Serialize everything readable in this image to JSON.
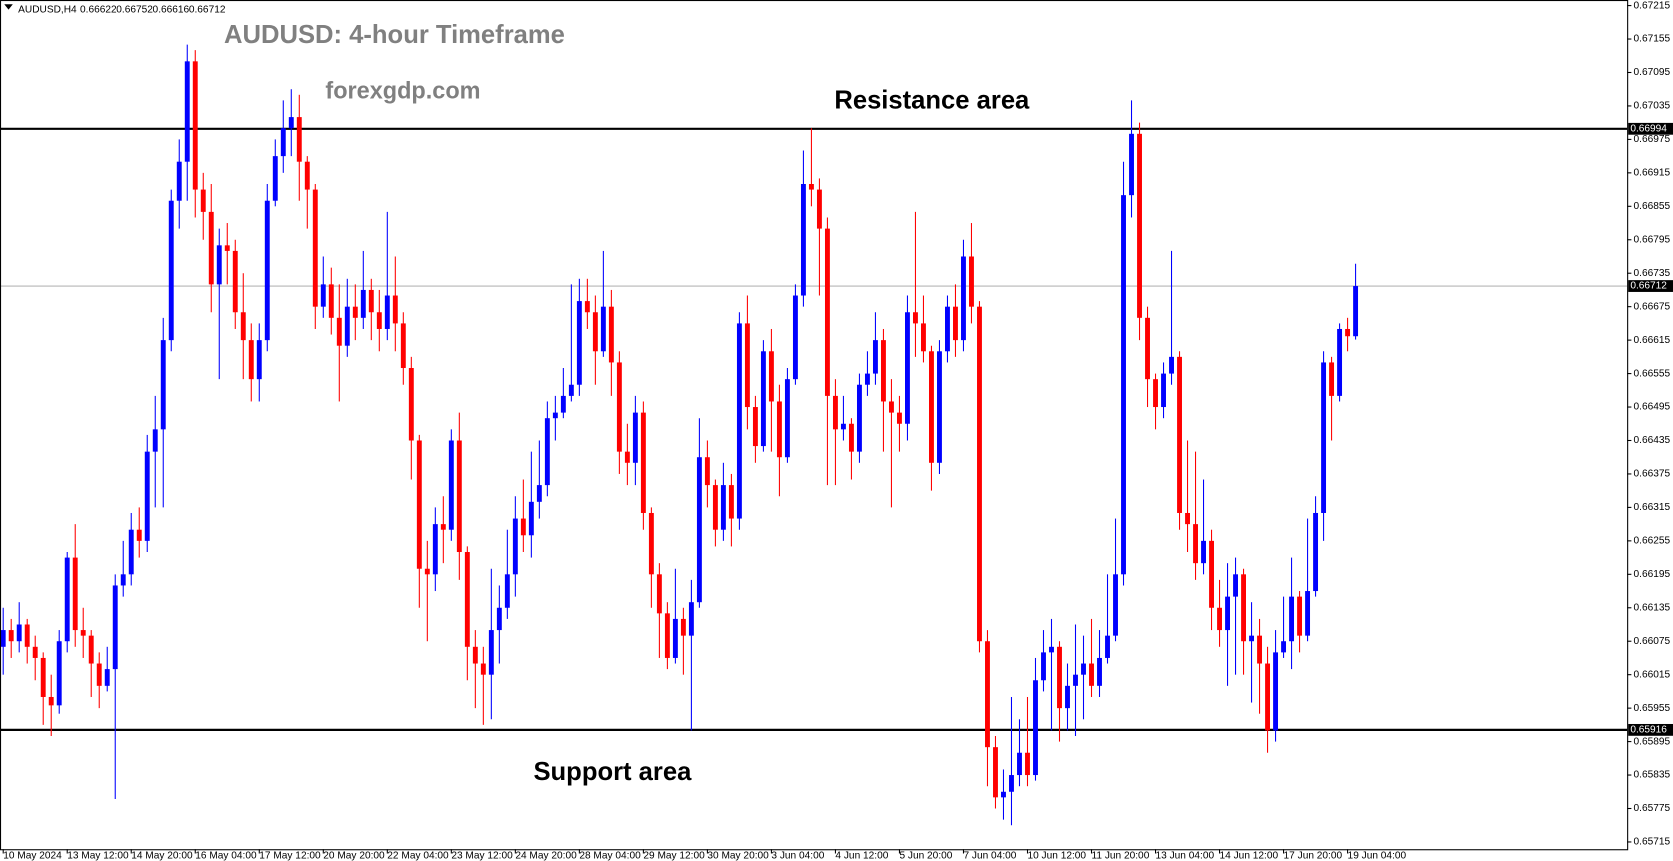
{
  "chart_data": {
    "type": "candlestick",
    "symbol": "AUDUSD,H4",
    "title": "AUDUSD: 4-hour Timeframe",
    "subtitle": "forexgdp.com",
    "up_color": "#0000ff",
    "down_color": "#ff0000",
    "ylim": [
      0.65702,
      0.67225
    ],
    "yticks": [
      0.67215,
      0.67155,
      0.67095,
      0.67035,
      0.66975,
      0.66915,
      0.66855,
      0.66795,
      0.66735,
      0.66675,
      0.66615,
      0.66555,
      0.66495,
      0.66435,
      0.66375,
      0.66315,
      0.66255,
      0.66195,
      0.66135,
      0.66075,
      0.66015,
      0.65955,
      0.65895,
      0.65835,
      0.65775,
      0.65715
    ],
    "resistance": {
      "value": 0.66994,
      "text": "Resistance area"
    },
    "support": {
      "value": 0.65916,
      "text": "Support area"
    },
    "current_price": 0.66712,
    "categories": [
      "10 May 2024",
      null,
      null,
      null,
      null,
      null,
      null,
      null,
      "13 May 12:00",
      null,
      null,
      null,
      null,
      null,
      null,
      null,
      "14 May 20:00",
      null,
      null,
      null,
      null,
      null,
      null,
      null,
      "16 May 04:00",
      null,
      null,
      null,
      null,
      null,
      null,
      null,
      "17 May 12:00",
      null,
      null,
      null,
      null,
      null,
      null,
      null,
      "20 May 20:00",
      null,
      null,
      null,
      null,
      null,
      null,
      null,
      "22 May 04:00",
      null,
      null,
      null,
      null,
      null,
      null,
      null,
      "23 May 12:00",
      null,
      null,
      null,
      null,
      null,
      null,
      null,
      "24 May 20:00",
      null,
      null,
      null,
      null,
      null,
      null,
      null,
      "28 May 04:00",
      null,
      null,
      null,
      null,
      null,
      null,
      null,
      "29 May 12:00",
      null,
      null,
      null,
      null,
      null,
      null,
      null,
      "30 May 20:00",
      null,
      null,
      null,
      null,
      null,
      null,
      null,
      "3 Jun 04:00",
      null,
      null,
      null,
      null,
      null,
      null,
      null,
      "4 Jun 12:00",
      null,
      null,
      null,
      null,
      null,
      null,
      null,
      "5 Jun 20:00",
      null,
      null,
      null,
      null,
      null,
      null,
      null,
      "7 Jun 04:00",
      null,
      null,
      null,
      null,
      null,
      null,
      null,
      "10 Jun 12:00",
      null,
      null,
      null,
      null,
      null,
      null,
      null,
      "11 Jun 20:00",
      null,
      null,
      null,
      null,
      null,
      null,
      null,
      "13 Jun 04:00",
      null,
      null,
      null,
      null,
      null,
      null,
      null,
      "14 Jun 12:00",
      null,
      null,
      null,
      null,
      null,
      null,
      null,
      "17 Jun 20:00",
      null,
      null,
      null,
      null,
      null,
      null,
      null,
      "19 Jun 04:00",
      null
    ],
    "open": [
      0.66065,
      0.66095,
      0.66075,
      0.66105,
      0.66065,
      0.66045,
      0.65975,
      0.6596,
      0.66075,
      0.66225,
      0.66095,
      0.66085,
      0.66035,
      0.65995,
      0.66025,
      0.66175,
      0.66195,
      0.66275,
      0.66255,
      0.66415,
      0.66455,
      0.66615,
      0.66865,
      0.66935,
      0.67115,
      0.66885,
      0.66845,
      0.66715,
      0.66785,
      0.66775,
      0.66665,
      0.66615,
      0.66545,
      0.66615,
      0.66865,
      0.66945,
      0.66995,
      0.67015,
      0.66935,
      0.66885,
      0.66675,
      0.66715,
      0.66655,
      0.66605,
      0.66675,
      0.66655,
      0.66705,
      0.66665,
      0.66635,
      0.66695,
      0.66645,
      0.66565,
      0.66435,
      0.66205,
      0.66195,
      0.66285,
      0.66275,
      0.66435,
      0.66235,
      0.66065,
      0.66035,
      0.66015,
      0.66095,
      0.66135,
      0.66195,
      0.66295,
      0.66265,
      0.66325,
      0.66355,
      0.66475,
      0.66485,
      0.66515,
      0.66535,
      0.66685,
      0.66665,
      0.66595,
      0.66675,
      0.66575,
      0.66415,
      0.66395,
      0.66485,
      0.66305,
      0.66195,
      0.66125,
      0.66045,
      0.66115,
      0.66085,
      0.66145,
      0.66405,
      0.66355,
      0.66275,
      0.66355,
      0.66295,
      0.66645,
      0.66495,
      0.66425,
      0.66595,
      0.66505,
      0.66405,
      0.66545,
      0.66695,
      0.66895,
      0.66885,
      0.66815,
      0.66515,
      0.66455,
      0.66465,
      0.66415,
      0.66535,
      0.66555,
      0.66615,
      0.66505,
      0.66485,
      0.66465,
      0.66665,
      0.66645,
      0.66595,
      0.66395,
      0.66595,
      0.66675,
      0.66615,
      0.66765,
      0.66675,
      0.66075,
      0.65885,
      0.65795,
      0.65805,
      0.65835,
      0.65875,
      0.65835,
      0.66005,
      0.66055,
      0.66065,
      0.65955,
      0.65995,
      0.66015,
      0.66035,
      0.65995,
      0.66045,
      0.66085,
      0.66195,
      0.66875,
      0.66985,
      0.66655,
      0.66545,
      0.66495,
      0.66555,
      0.66585,
      0.66305,
      0.66285,
      0.66215,
      0.66255,
      0.66135,
      0.66095,
      0.66155,
      0.66195,
      0.66075,
      0.66085,
      0.66035,
      0.65915,
      0.66055,
      0.66075,
      0.66155,
      0.66085,
      0.66165,
      0.66305,
      0.66575,
      0.66515,
      0.66635,
      0.66622
    ],
    "high": [
      0.66135,
      0.66115,
      0.66145,
      0.66115,
      0.66085,
      0.66055,
      0.66015,
      0.66095,
      0.66235,
      0.66285,
      0.66135,
      0.66095,
      0.66055,
      0.66065,
      0.66195,
      0.66255,
      0.66305,
      0.66315,
      0.66445,
      0.66515,
      0.66655,
      0.66885,
      0.66975,
      0.67145,
      0.67135,
      0.66915,
      0.66895,
      0.66815,
      0.66825,
      0.66795,
      0.66735,
      0.66645,
      0.66645,
      0.66895,
      0.66975,
      0.67045,
      0.67065,
      0.67055,
      0.66945,
      0.66895,
      0.66765,
      0.66745,
      0.66715,
      0.66725,
      0.66715,
      0.66775,
      0.66725,
      0.66705,
      0.66845,
      0.66765,
      0.66665,
      0.66585,
      0.66445,
      0.66255,
      0.66315,
      0.66335,
      0.66455,
      0.66485,
      0.66245,
      0.66095,
      0.66065,
      0.66205,
      0.66175,
      0.66275,
      0.66335,
      0.66365,
      0.66415,
      0.66435,
      0.66505,
      0.66515,
      0.66565,
      0.66715,
      0.66725,
      0.66725,
      0.66695,
      0.66775,
      0.66705,
      0.66595,
      0.66465,
      0.66515,
      0.66505,
      0.66315,
      0.66215,
      0.66145,
      0.66205,
      0.66135,
      0.66185,
      0.66475,
      0.66435,
      0.66365,
      0.66395,
      0.66375,
      0.66665,
      0.66695,
      0.66515,
      0.66615,
      0.66635,
      0.66535,
      0.66565,
      0.66715,
      0.66955,
      0.66995,
      0.66905,
      0.66835,
      0.66545,
      0.66515,
      0.66475,
      0.66555,
      0.66595,
      0.66665,
      0.66635,
      0.66545,
      0.66515,
      0.66695,
      0.66845,
      0.66695,
      0.66605,
      0.66615,
      0.66695,
      0.66715,
      0.66795,
      0.66825,
      0.66685,
      0.66095,
      0.65905,
      0.65845,
      0.65975,
      0.65935,
      0.65975,
      0.66045,
      0.66095,
      0.66115,
      0.66075,
      0.66035,
      0.66105,
      0.66085,
      0.66115,
      0.66095,
      0.66195,
      0.66295,
      0.66935,
      0.67045,
      0.67005,
      0.66675,
      0.66555,
      0.66575,
      0.66775,
      0.66595,
      0.66435,
      0.66415,
      0.66365,
      0.66275,
      0.66185,
      0.66215,
      0.66225,
      0.66205,
      0.66145,
      0.66115,
      0.66065,
      0.66095,
      0.66155,
      0.66225,
      0.66165,
      0.66295,
      0.66335,
      0.66595,
      0.66585,
      0.66645,
      0.66655,
      0.66752
    ],
    "low": [
      0.66015,
      0.66045,
      0.66055,
      0.66035,
      0.66005,
      0.65925,
      0.65905,
      0.65945,
      0.66055,
      0.66065,
      0.66045,
      0.65975,
      0.65955,
      0.65985,
      0.65792,
      0.66155,
      0.66175,
      0.66225,
      0.66235,
      0.66315,
      0.66315,
      0.66595,
      0.66815,
      0.66865,
      0.66835,
      0.66795,
      0.66665,
      0.66545,
      0.66715,
      0.66635,
      0.66545,
      0.66505,
      0.66505,
      0.66595,
      0.66855,
      0.66915,
      0.66945,
      0.66865,
      0.66815,
      0.66635,
      0.66655,
      0.66625,
      0.66505,
      0.66585,
      0.66615,
      0.66635,
      0.66615,
      0.66595,
      0.66615,
      0.66595,
      0.66535,
      0.66365,
      0.66135,
      0.66075,
      0.66165,
      0.66215,
      0.66255,
      0.66185,
      0.66005,
      0.65955,
      0.65925,
      0.65935,
      0.66035,
      0.66115,
      0.66155,
      0.66235,
      0.66225,
      0.66295,
      0.66335,
      0.66435,
      0.66475,
      0.66505,
      0.66515,
      0.66635,
      0.66535,
      0.66585,
      0.66515,
      0.66375,
      0.66355,
      0.66355,
      0.66275,
      0.66135,
      0.66045,
      0.66025,
      0.66035,
      0.66015,
      0.65915,
      0.66135,
      0.66315,
      0.66245,
      0.66255,
      0.66245,
      0.66275,
      0.66455,
      0.66395,
      0.66415,
      0.66415,
      0.66335,
      0.66395,
      0.66535,
      0.66675,
      0.66855,
      0.66695,
      0.66355,
      0.66355,
      0.66435,
      0.66365,
      0.66395,
      0.66515,
      0.66535,
      0.66415,
      0.66315,
      0.66415,
      0.66435,
      0.66585,
      0.66575,
      0.66345,
      0.66375,
      0.66575,
      0.66585,
      0.66595,
      0.66645,
      0.66055,
      0.65815,
      0.65775,
      0.65755,
      0.65745,
      0.65815,
      0.65815,
      0.65825,
      0.65985,
      0.65915,
      0.65895,
      0.65915,
      0.65905,
      0.65935,
      0.65975,
      0.65975,
      0.66035,
      0.66075,
      0.66175,
      0.66835,
      0.66615,
      0.66495,
      0.66455,
      0.66475,
      0.66535,
      0.66275,
      0.66235,
      0.66185,
      0.66195,
      0.66095,
      0.66065,
      0.65995,
      0.66015,
      0.66015,
      0.65965,
      0.65945,
      0.65875,
      0.65895,
      0.66045,
      0.66025,
      0.66055,
      0.66075,
      0.66155,
      0.66255,
      0.66435,
      0.66505,
      0.66595,
      0.66616
    ],
    "close": [
      0.66095,
      0.66075,
      0.66105,
      0.66065,
      0.66045,
      0.65975,
      0.6596,
      0.66075,
      0.66225,
      0.66095,
      0.66085,
      0.66035,
      0.65995,
      0.66025,
      0.66175,
      0.66195,
      0.66275,
      0.66255,
      0.66415,
      0.66455,
      0.66615,
      0.66865,
      0.66935,
      0.67115,
      0.66885,
      0.66845,
      0.66715,
      0.66785,
      0.66775,
      0.66665,
      0.66615,
      0.66545,
      0.66615,
      0.66865,
      0.66945,
      0.66995,
      0.67015,
      0.66935,
      0.66885,
      0.66675,
      0.66715,
      0.66655,
      0.66605,
      0.66675,
      0.66655,
      0.66705,
      0.66665,
      0.66635,
      0.66695,
      0.66645,
      0.66565,
      0.66435,
      0.66205,
      0.66195,
      0.66285,
      0.66275,
      0.66435,
      0.66235,
      0.66065,
      0.66035,
      0.66015,
      0.66095,
      0.66135,
      0.66195,
      0.66295,
      0.66265,
      0.66325,
      0.66355,
      0.66475,
      0.66485,
      0.66515,
      0.66535,
      0.66685,
      0.66665,
      0.66595,
      0.66675,
      0.66575,
      0.66415,
      0.66395,
      0.66485,
      0.66305,
      0.66195,
      0.66125,
      0.66045,
      0.66115,
      0.66085,
      0.66145,
      0.66405,
      0.66355,
      0.66275,
      0.66355,
      0.66295,
      0.66645,
      0.66495,
      0.66425,
      0.66595,
      0.66505,
      0.66405,
      0.66545,
      0.66695,
      0.66895,
      0.66885,
      0.66815,
      0.66515,
      0.66455,
      0.66465,
      0.66415,
      0.66535,
      0.66555,
      0.66615,
      0.66505,
      0.66485,
      0.66465,
      0.66665,
      0.66645,
      0.66595,
      0.66395,
      0.66595,
      0.66675,
      0.66615,
      0.66765,
      0.66675,
      0.66075,
      0.65885,
      0.65795,
      0.65805,
      0.65835,
      0.65875,
      0.65835,
      0.66005,
      0.66055,
      0.66065,
      0.65955,
      0.65995,
      0.66015,
      0.66035,
      0.65995,
      0.66045,
      0.66085,
      0.66195,
      0.66875,
      0.66985,
      0.66655,
      0.66545,
      0.66495,
      0.66555,
      0.66585,
      0.66305,
      0.66285,
      0.66215,
      0.66255,
      0.66135,
      0.66095,
      0.66155,
      0.66195,
      0.66075,
      0.66085,
      0.66035,
      0.65915,
      0.66055,
      0.66075,
      0.66155,
      0.66085,
      0.66165,
      0.66305,
      0.66575,
      0.66515,
      0.66635,
      0.66622,
      0.66712
    ]
  }
}
